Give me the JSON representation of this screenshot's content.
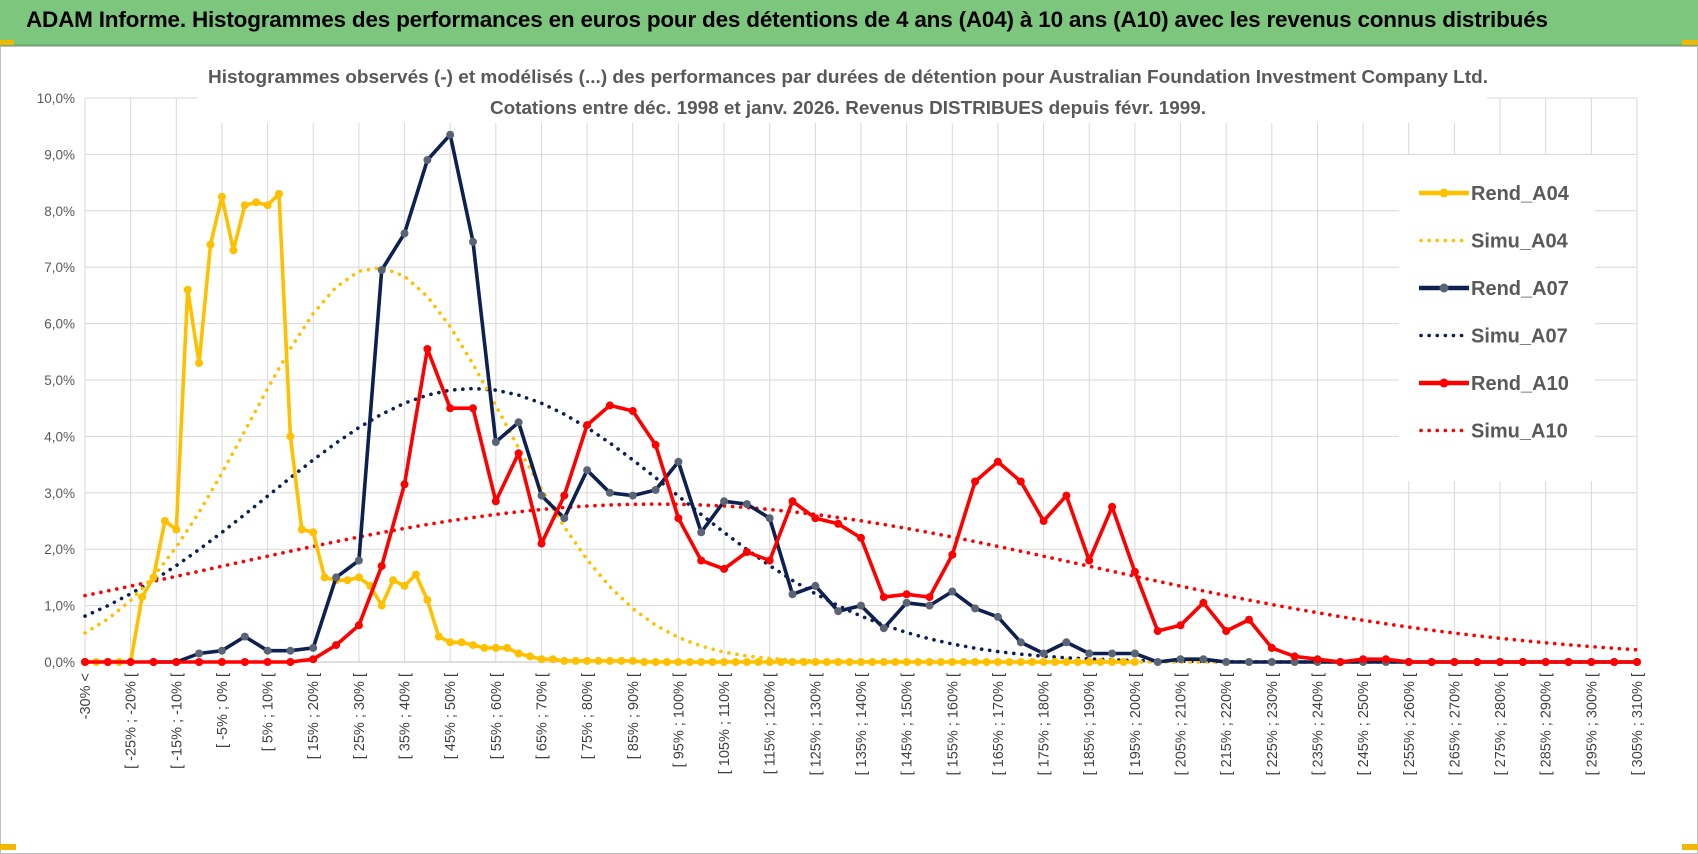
{
  "banner": {
    "title": "ADAM Informe. Histogrammes des performances en euros pour des détentions de 4 ans (A04) à 10 ans (A10) avec les revenus connus distribués",
    "color": "#7dc67d"
  },
  "chart_data": {
    "type": "line",
    "title": "Histogrammes observés (-) et modélisés (...) des performances par durées de détention pour Australian Foundation Investment Company Ltd.",
    "subtitle": "Cotations entre déc. 1998 et janv. 2026. Revenus DISTRIBUES depuis févr. 1999.",
    "xlabel": "",
    "ylabel": "",
    "ylim": [
      0,
      10
    ],
    "yticks": [
      "0,0%",
      "1,0%",
      "2,0%",
      "3,0%",
      "4,0%",
      "5,0%",
      "6,0%",
      "7,0%",
      "8,0%",
      "9,0%",
      "10,0%"
    ],
    "grid": true,
    "legend_position": "right",
    "categories": [
      "-30% <",
      "[ -25% ; -20% [",
      "[ -15% ; -10% [",
      "[ -5% ; 0% [",
      "[ 5% ; 10% [",
      "[ 15% ; 20% [",
      "[ 25% ; 30% [",
      "[ 35% ; 40% [",
      "[ 45% ; 50% [",
      "[ 55% ; 60% [",
      "[ 65% ; 70% [",
      "[ 75% ; 80% [",
      "[ 85% ; 90% [",
      "[ 95% ; 100% [",
      "[ 105% ; 110% [",
      "[ 115% ; 120% [",
      "[ 125% ; 130% [",
      "[ 135% ; 140% [",
      "[ 145% ; 150% [",
      "[ 155% ; 160% [",
      "[ 165% ; 170% [",
      "[ 175% ; 180% [",
      "[ 185% ; 190% [",
      "[ 195% ; 200% [",
      "[ 205% ; 210% [",
      "[ 215% ; 220% [",
      "[ 225% ; 230% [",
      "[ 235% ; 240% [",
      "[ 245% ; 250% [",
      "[ 255% ; 260% [",
      "[ 265% ; 270% [",
      "[ 275% ; 280% [",
      "[ 285% ; 290% [",
      "[ 295% ; 300% [",
      "[ 305% ; 310% ["
    ],
    "x_values_pct": [
      -30,
      -27.5,
      -25,
      -22.5,
      -20,
      -17.5,
      -15,
      -12.5,
      -10,
      -7.5,
      -5,
      -2.5,
      0,
      2.5,
      5,
      7.5,
      10,
      12.5,
      15,
      17.5,
      20,
      22.5,
      25,
      27.5,
      30,
      32.5,
      35,
      37.5,
      40,
      42.5,
      45,
      47.5,
      50,
      52.5,
      55,
      57.5,
      60,
      62.5,
      65,
      67.5,
      70,
      72.5,
      75,
      77.5,
      80,
      82.5,
      85,
      87.5,
      90,
      92.5,
      95,
      97.5,
      100,
      102.5,
      105,
      107.5,
      110,
      112.5,
      115,
      117.5,
      120,
      122.5,
      125,
      127.5,
      130,
      132.5,
      135,
      137.5,
      140,
      142.5,
      145,
      147.5,
      150,
      152.5,
      155,
      157.5,
      160,
      162.5,
      165,
      167.5,
      170,
      172.5,
      175,
      177.5,
      180,
      182.5,
      185,
      187.5,
      190,
      192.5,
      195,
      197.5,
      200,
      202.5,
      205,
      207.5,
      210,
      212.5,
      215,
      217.5,
      220,
      222.5,
      225,
      227.5,
      230,
      232.5,
      235,
      237.5,
      240,
      242.5,
      245,
      247.5,
      250,
      252.5,
      255,
      257.5,
      260,
      262.5,
      265,
      267.5,
      270,
      272.5,
      275,
      277.5,
      280,
      282.5,
      285,
      287.5,
      290,
      292.5,
      295,
      297.5,
      300,
      302.5,
      305,
      307.5,
      310
    ],
    "series": [
      {
        "name": "Rend_A04",
        "color": "#ffc000",
        "style": "solid",
        "x": [
          -30,
          -27.5,
          -25,
          -22.5,
          -20,
          -17.5,
          -15,
          -12.5,
          -10,
          -7.5,
          -5,
          -2.5,
          0,
          2.5,
          5,
          7.5,
          10,
          12.5,
          15,
          17.5,
          20,
          22.5,
          25,
          27.5,
          30,
          32.5,
          35,
          37.5,
          40,
          42.5,
          45,
          47.5,
          50,
          52.5,
          55,
          57.5,
          60,
          62.5,
          65,
          67.5,
          70,
          72.5,
          75,
          77.5,
          80,
          82.5,
          85,
          87.5,
          90,
          92.5,
          95,
          97.5,
          100,
          102.5,
          105,
          107.5,
          110,
          112.5,
          115,
          117.5,
          120,
          122.5,
          125,
          127.5,
          130,
          132.5,
          135,
          137.5,
          140,
          142.5,
          145,
          147.5,
          150,
          152.5,
          155,
          157.5,
          160,
          162.5,
          165,
          167.5,
          170,
          172.5,
          175,
          177.5,
          180,
          182.5,
          185,
          187.5,
          190,
          192.5,
          195,
          197.5,
          200
        ],
        "values": [
          0,
          0,
          0,
          0,
          0,
          1.15,
          1.5,
          2.5,
          2.35,
          6.6,
          5.3,
          7.4,
          8.25,
          7.3,
          8.1,
          8.15,
          8.1,
          8.3,
          4.0,
          2.35,
          2.3,
          1.5,
          1.45,
          1.45,
          1.5,
          1.35,
          1.0,
          1.45,
          1.35,
          1.55,
          1.1,
          0.45,
          0.35,
          0.35,
          0.3,
          0.25,
          0.25,
          0.25,
          0.15,
          0.1,
          0.05,
          0.05,
          0.02,
          0.02,
          0.02,
          0.02,
          0.02,
          0.02,
          0.02,
          0,
          0,
          0,
          0,
          0,
          0,
          0,
          0,
          0,
          0,
          0,
          0,
          0,
          0,
          0,
          0,
          0,
          0,
          0,
          0,
          0,
          0,
          0,
          0,
          0,
          0,
          0,
          0,
          0,
          0,
          0,
          0,
          0,
          0,
          0,
          0,
          0,
          0,
          0,
          0,
          0,
          0,
          0,
          0
        ]
      },
      {
        "name": "Simu_A04",
        "color": "#ffc000",
        "style": "dotted",
        "mean_pct": 34,
        "sd_pct": 28,
        "peak": 7.0
      },
      {
        "name": "Rend_A07",
        "color": "#0d2050",
        "style": "solid",
        "x": [
          -15,
          -10,
          -5,
          0,
          5,
          10,
          15,
          20,
          25,
          30,
          35,
          40,
          45,
          50,
          55,
          60,
          65,
          70,
          75,
          80,
          85,
          90,
          95,
          100,
          105,
          110,
          115,
          120,
          125,
          130,
          135,
          140,
          145,
          150,
          155,
          160,
          165,
          170,
          175,
          180,
          185,
          190,
          195,
          200,
          205,
          210,
          215,
          220,
          225,
          230,
          235,
          240,
          245,
          250,
          255,
          260,
          265,
          270,
          275,
          280,
          285,
          290,
          295,
          300,
          305,
          310
        ],
        "values": [
          0,
          0,
          0.15,
          0.2,
          0.45,
          0.2,
          0.2,
          0.25,
          1.5,
          1.8,
          6.95,
          7.6,
          8.9,
          9.35,
          7.45,
          3.9,
          4.25,
          2.95,
          2.55,
          3.4,
          3.0,
          2.95,
          3.05,
          3.55,
          2.3,
          2.85,
          2.8,
          2.55,
          1.2,
          1.35,
          0.9,
          1.0,
          0.6,
          1.05,
          1.0,
          1.25,
          0.95,
          0.8,
          0.35,
          0.15,
          0.35,
          0.15,
          0.15,
          0.15,
          0,
          0.05,
          0.05,
          0,
          0,
          0,
          0,
          0,
          0,
          0,
          0,
          0,
          0,
          0,
          0,
          0,
          0,
          0,
          0,
          0,
          0,
          0
        ]
      },
      {
        "name": "Simu_A07",
        "color": "#0d2050",
        "style": "dotted",
        "mean_pct": 55,
        "sd_pct": 45,
        "peak": 4.85
      },
      {
        "name": "Rend_A10",
        "color": "#ff0000",
        "style": "solid",
        "x": [
          -30,
          -25,
          -20,
          -15,
          -10,
          -5,
          0,
          5,
          10,
          15,
          20,
          25,
          30,
          35,
          40,
          45,
          50,
          55,
          60,
          65,
          70,
          75,
          80,
          85,
          90,
          95,
          100,
          105,
          110,
          115,
          120,
          125,
          130,
          135,
          140,
          145,
          150,
          155,
          160,
          165,
          170,
          175,
          180,
          185,
          190,
          195,
          200,
          205,
          210,
          215,
          220,
          225,
          230,
          235,
          240,
          245,
          250,
          255,
          260,
          265,
          270,
          275,
          280,
          285,
          290,
          295,
          300,
          305,
          310
        ],
        "values": [
          0,
          0,
          0,
          0,
          0,
          0,
          0,
          0,
          0,
          0,
          0.05,
          0.3,
          0.65,
          1.7,
          3.15,
          5.55,
          4.5,
          4.5,
          2.85,
          3.7,
          2.1,
          2.95,
          4.2,
          4.55,
          4.45,
          3.85,
          2.55,
          1.8,
          1.65,
          1.95,
          1.8,
          2.85,
          2.55,
          2.45,
          2.2,
          1.15,
          1.2,
          1.15,
          1.9,
          3.2,
          3.55,
          3.2,
          2.5,
          2.95,
          1.8,
          2.75,
          1.6,
          0.55,
          0.65,
          1.05,
          0.55,
          0.75,
          0.25,
          0.1,
          0.05,
          0,
          0.05,
          0.05,
          0,
          0,
          0,
          0,
          0,
          0,
          0,
          0,
          0,
          0,
          0
        ]
      },
      {
        "name": "Simu_A10",
        "color": "#ff0000",
        "style": "dotted",
        "mean_pct": 95,
        "sd_pct": 95,
        "peak": 2.8
      }
    ]
  }
}
